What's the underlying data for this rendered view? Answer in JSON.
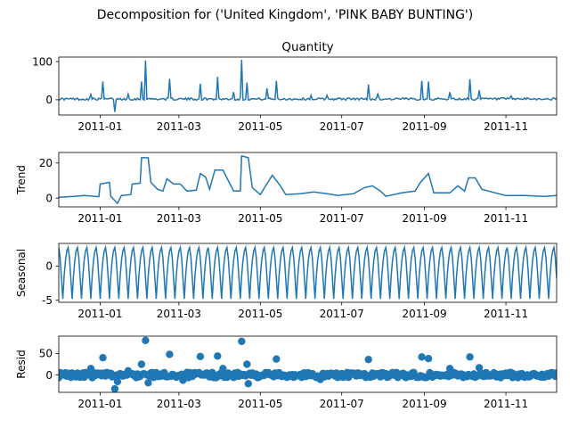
{
  "figure": {
    "suptitle": "Decomposition for ('United Kingdom', 'PINK BABY BUNTING')",
    "line_color": "#1f77b4"
  },
  "chart_data": [
    {
      "type": "line",
      "name": "observed",
      "title": "Quantity",
      "ylabel": "",
      "x_range": [
        "2010-12-01",
        "2011-12-09"
      ],
      "xticks": [
        "2011-01",
        "2011-03",
        "2011-05",
        "2011-07",
        "2011-09",
        "2011-11"
      ],
      "yticks": [
        0,
        100
      ],
      "ylim": [
        -40,
        112
      ],
      "baseline": 2,
      "spikes": [
        [
          "2010-12-25",
          14
        ],
        [
          "2011-01-03",
          48
        ],
        [
          "2011-01-12",
          -32
        ],
        [
          "2011-01-22",
          15
        ],
        [
          "2011-02-01",
          48
        ],
        [
          "2011-02-04",
          103
        ],
        [
          "2011-02-22",
          55
        ],
        [
          "2011-03-17",
          42
        ],
        [
          "2011-03-30",
          60
        ],
        [
          "2011-04-11",
          20
        ],
        [
          "2011-04-17",
          105
        ],
        [
          "2011-04-21",
          45
        ],
        [
          "2011-05-06",
          30
        ],
        [
          "2011-05-13",
          50
        ],
        [
          "2011-06-08",
          12
        ],
        [
          "2011-06-20",
          12
        ],
        [
          "2011-07-21",
          40
        ],
        [
          "2011-07-28",
          15
        ],
        [
          "2011-08-30",
          50
        ],
        [
          "2011-09-04",
          48
        ],
        [
          "2011-09-20",
          20
        ],
        [
          "2011-10-05",
          54
        ],
        [
          "2011-10-12",
          25
        ],
        [
          "2011-11-05",
          10
        ]
      ]
    },
    {
      "type": "line",
      "name": "trend",
      "ylabel": "Trend",
      "x_range": [
        "2010-12-01",
        "2011-12-09"
      ],
      "xticks": [
        "2011-01",
        "2011-03",
        "2011-05",
        "2011-07",
        "2011-09",
        "2011-11"
      ],
      "yticks": [
        0,
        20
      ],
      "ylim": [
        -5,
        26
      ],
      "points": [
        [
          "2010-12-01",
          0.5
        ],
        [
          "2010-12-12",
          1.0
        ],
        [
          "2010-12-20",
          1.5
        ],
        [
          "2010-12-31",
          0.8
        ],
        [
          "2011-01-01",
          8.0
        ],
        [
          "2011-01-08",
          9.0
        ],
        [
          "2011-01-09",
          1.0
        ],
        [
          "2011-01-14",
          -3.0
        ],
        [
          "2011-01-17",
          1.5
        ],
        [
          "2011-01-24",
          2.0
        ],
        [
          "2011-01-25",
          8.0
        ],
        [
          "2011-01-31",
          8.5
        ],
        [
          "2011-02-01",
          23.0
        ],
        [
          "2011-02-06",
          23.0
        ],
        [
          "2011-02-08",
          9.0
        ],
        [
          "2011-02-13",
          5.0
        ],
        [
          "2011-02-17",
          4.0
        ],
        [
          "2011-02-20",
          11.0
        ],
        [
          "2011-02-25",
          8.0
        ],
        [
          "2011-03-02",
          8.0
        ],
        [
          "2011-03-07",
          4.0
        ],
        [
          "2011-03-14",
          4.5
        ],
        [
          "2011-03-17",
          14.0
        ],
        [
          "2011-03-21",
          12.0
        ],
        [
          "2011-03-24",
          5.0
        ],
        [
          "2011-03-28",
          16.0
        ],
        [
          "2011-04-03",
          16.0
        ],
        [
          "2011-04-07",
          10.0
        ],
        [
          "2011-04-11",
          4.0
        ],
        [
          "2011-04-16",
          4.0
        ],
        [
          "2011-04-17",
          24.0
        ],
        [
          "2011-04-22",
          23.0
        ],
        [
          "2011-04-25",
          6.0
        ],
        [
          "2011-05-01",
          2.0
        ],
        [
          "2011-05-05",
          7.0
        ],
        [
          "2011-05-10",
          13.0
        ],
        [
          "2011-05-16",
          7.0
        ],
        [
          "2011-05-20",
          2.0
        ],
        [
          "2011-05-31",
          2.5
        ],
        [
          "2011-06-10",
          3.5
        ],
        [
          "2011-06-20",
          2.5
        ],
        [
          "2011-06-28",
          1.5
        ],
        [
          "2011-07-10",
          2.5
        ],
        [
          "2011-07-18",
          6.0
        ],
        [
          "2011-07-24",
          7.0
        ],
        [
          "2011-07-30",
          4.0
        ],
        [
          "2011-08-03",
          1.0
        ],
        [
          "2011-08-15",
          3.0
        ],
        [
          "2011-08-25",
          4.0
        ],
        [
          "2011-08-29",
          9.0
        ],
        [
          "2011-09-04",
          14.0
        ],
        [
          "2011-09-08",
          3.0
        ],
        [
          "2011-09-20",
          3.0
        ],
        [
          "2011-09-26",
          7.0
        ],
        [
          "2011-10-01",
          4.0
        ],
        [
          "2011-10-04",
          11.5
        ],
        [
          "2011-10-09",
          11.5
        ],
        [
          "2011-10-14",
          5.0
        ],
        [
          "2011-10-24",
          3.0
        ],
        [
          "2011-11-01",
          1.5
        ],
        [
          "2011-11-15",
          1.5
        ],
        [
          "2011-11-30",
          1.0
        ],
        [
          "2011-12-09",
          1.5
        ]
      ]
    },
    {
      "type": "line",
      "name": "seasonal",
      "ylabel": "Seasonal",
      "x_range": [
        "2010-12-01",
        "2011-12-09"
      ],
      "xticks": [
        "2011-01",
        "2011-03",
        "2011-05",
        "2011-07",
        "2011-09",
        "2011-11"
      ],
      "yticks": [
        -5,
        0
      ],
      "ylim": [
        -5.3,
        3.3
      ],
      "period_days": 7,
      "cycle_values": [
        2.7,
        1.2,
        -1.8,
        -4.8,
        -1.5,
        0.8,
        2.2
      ]
    },
    {
      "type": "scatter",
      "name": "resid",
      "ylabel": "Resid",
      "x_range": [
        "2010-12-01",
        "2011-12-09"
      ],
      "xticks": [
        "2011-01",
        "2011-03",
        "2011-05",
        "2011-07",
        "2011-09",
        "2011-11"
      ],
      "yticks": [
        0,
        50
      ],
      "ylim": [
        -40,
        90
      ],
      "baseline": 0,
      "outliers": [
        [
          "2010-12-25",
          15
        ],
        [
          "2011-01-03",
          40
        ],
        [
          "2011-01-12",
          -32
        ],
        [
          "2011-01-22",
          10
        ],
        [
          "2011-02-01",
          25
        ],
        [
          "2011-02-04",
          80
        ],
        [
          "2011-02-06",
          -18
        ],
        [
          "2011-02-22",
          48
        ],
        [
          "2011-03-17",
          43
        ],
        [
          "2011-03-30",
          44
        ],
        [
          "2011-04-03",
          15
        ],
        [
          "2011-04-17",
          78
        ],
        [
          "2011-04-21",
          25
        ],
        [
          "2011-04-22",
          -20
        ],
        [
          "2011-05-13",
          37
        ],
        [
          "2011-07-21",
          36
        ],
        [
          "2011-08-30",
          42
        ],
        [
          "2011-09-04",
          38
        ],
        [
          "2011-09-20",
          15
        ],
        [
          "2011-10-05",
          42
        ],
        [
          "2011-10-12",
          17
        ],
        [
          "2011-01-14",
          -15
        ],
        [
          "2011-03-04",
          -12
        ],
        [
          "2011-06-15",
          -10
        ]
      ]
    }
  ]
}
